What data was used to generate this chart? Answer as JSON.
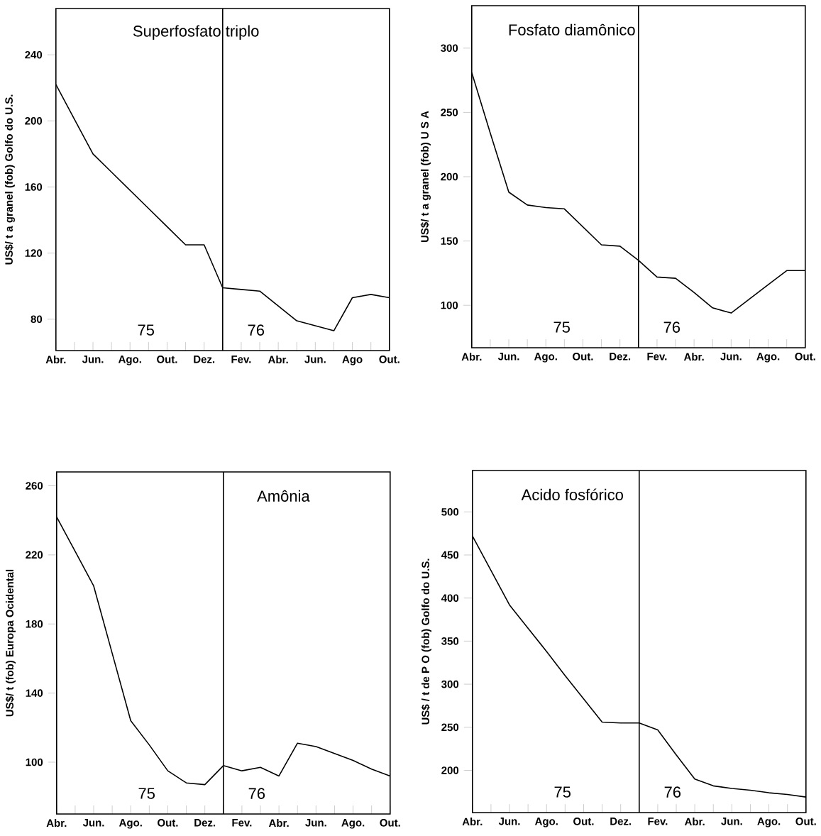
{
  "chart_data": [
    {
      "type": "line",
      "title": "Superfosfato triplo",
      "ylabel": "US$/ t   a granel  (fob)    Golfo  do  U.S.",
      "color": "#000000",
      "categories": [
        "Abr.",
        null,
        "Jun.",
        null,
        "Ago.",
        null,
        "Out.",
        null,
        "Dez.",
        null,
        "Fev.",
        null,
        "Abr.",
        null,
        "Jun.",
        null,
        "Ago",
        null,
        "Out."
      ],
      "values": [
        222,
        201,
        180,
        169,
        158,
        147,
        136,
        125,
        125,
        99,
        98,
        97,
        88,
        79,
        76,
        73,
        93,
        95,
        93
      ],
      "ylim": [
        61,
        268
      ],
      "yticks": [
        80,
        120,
        160,
        200,
        240
      ],
      "annotations": [
        "75",
        "76"
      ]
    },
    {
      "type": "line",
      "title": "Fosfato   diamônico",
      "ylabel": "US$/ t   a   granel  (fob)  U S A",
      "color": "#000000",
      "categories": [
        "Abr.",
        null,
        "Jun.",
        null,
        "Ago.",
        null,
        "Out.",
        null,
        "Dez.",
        null,
        "Fev.",
        null,
        "Abr.",
        null,
        "Jun.",
        null,
        "Ago.",
        null,
        "Out."
      ],
      "values": [
        281,
        234,
        188,
        178,
        176,
        175,
        161,
        147,
        146,
        135,
        122,
        121,
        110,
        98,
        94,
        105,
        116,
        127,
        127
      ],
      "ylim": [
        67,
        333
      ],
      "yticks": [
        100,
        150,
        200,
        250,
        300
      ],
      "annotations": [
        "75",
        "76"
      ]
    },
    {
      "type": "line",
      "title": "Amônia",
      "ylabel": "US$/ t   (fob)    Europa   Ocidental",
      "color": "#000000",
      "categories": [
        "Abr.",
        null,
        "Jun.",
        null,
        "Ago.",
        null,
        "Out.",
        null,
        "Dez.",
        null,
        "Fev.",
        null,
        "Abr.",
        null,
        "Jun.",
        null,
        "Ago.",
        null,
        "Out."
      ],
      "values": [
        242,
        222,
        202,
        163,
        124,
        110,
        95,
        88,
        87,
        98,
        95,
        97,
        92,
        111,
        109,
        105,
        101,
        96,
        92
      ],
      "ylim": [
        70,
        268
      ],
      "yticks": [
        100,
        140,
        180,
        220,
        260
      ],
      "annotations": [
        "75",
        "76"
      ]
    },
    {
      "type": "line",
      "title": "Acido   fosfórico",
      "ylabel": "US$ / t  de  P  O     (fob)    Golfo  do  U.S.",
      "color": "#000000",
      "categories": [
        "Abr.",
        null,
        "Jun.",
        null,
        "Ago.",
        null,
        "Out.",
        null,
        "Dez.",
        null,
        "Fev.",
        null,
        "Abr.",
        null,
        "Jun.",
        null,
        "Ago.",
        null,
        "Out."
      ],
      "values": [
        472,
        432,
        392,
        365,
        338,
        310,
        283,
        256,
        255,
        255,
        247,
        218,
        190,
        182,
        179,
        177,
        174,
        172,
        169
      ],
      "ylim": [
        151,
        548
      ],
      "yticks": [
        200,
        250,
        300,
        350,
        400,
        450,
        500
      ],
      "annotations": [
        "75",
        "76"
      ]
    }
  ]
}
